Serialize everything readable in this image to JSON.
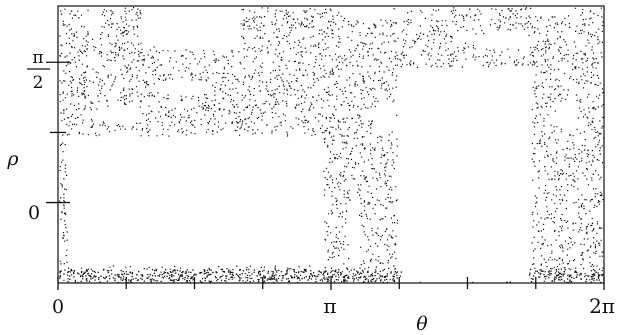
{
  "chart_data": {
    "type": "scatter",
    "title": "",
    "xlabel": "θ",
    "ylabel": "ρ",
    "xlim": [
      0,
      6.2832
    ],
    "ylim": [
      -0.9,
      2.2
    ],
    "grid": false,
    "legend": "none",
    "x_ticks": [
      {
        "value": 0,
        "label": "0"
      },
      {
        "value": 3.1416,
        "label": "π"
      },
      {
        "value": 6.2832,
        "label": "2π"
      }
    ],
    "x_minor_ticks": [
      0.785,
      1.571,
      2.356,
      3.927,
      4.712,
      5.498
    ],
    "y_ticks": [
      {
        "value": 0,
        "label": "0"
      },
      {
        "value": 1.5708,
        "label": "π/2",
        "num": "π",
        "den": "2"
      }
    ],
    "y_minor_ticks": [
      0.785
    ],
    "point_color": "#111111",
    "point_density_note_visible": false,
    "regions_without_points": [
      {
        "shape": "rect",
        "x": [
          0.1,
          3.05
        ],
        "y": [
          -0.7,
          0.75
        ]
      },
      {
        "shape": "rect",
        "x": [
          3.9,
          5.45
        ],
        "y": [
          -0.88,
          1.52
        ]
      },
      {
        "shape": "rect",
        "x": [
          0.95,
          2.1
        ],
        "y": [
          1.75,
          2.2
        ]
      },
      {
        "shape": "ellipse",
        "cx": 1.45,
        "cy": 1.29,
        "rx": 0.32,
        "ry": 0.09
      },
      {
        "shape": "ellipse",
        "cx": 1.85,
        "cy": 1.88,
        "rx": 0.22,
        "ry": 0.18
      },
      {
        "shape": "ellipse",
        "cx": 0.7,
        "cy": 0.97,
        "rx": 0.25,
        "ry": 0.09
      },
      {
        "shape": "ellipse",
        "cx": 0.4,
        "cy": 2.05,
        "rx": 0.12,
        "ry": 0.12
      },
      {
        "shape": "ellipse",
        "cx": 3.75,
        "cy": 0.95,
        "rx": 0.13,
        "ry": 0.2
      },
      {
        "shape": "ellipse",
        "cx": 3.4,
        "cy": -0.33,
        "rx": 0.07,
        "ry": 0.45
      },
      {
        "shape": "ellipse",
        "cx": 5.85,
        "cy": 0.98,
        "rx": 0.12,
        "ry": 0.18
      },
      {
        "shape": "ellipse",
        "cx": 5.9,
        "cy": -0.12,
        "rx": 0.06,
        "ry": 0.07
      },
      {
        "shape": "ellipse",
        "cx": 5.1,
        "cy": 1.82,
        "rx": 0.4,
        "ry": 0.09
      },
      {
        "shape": "ellipse",
        "cx": 3.55,
        "cy": 2.15,
        "rx": 0.3,
        "ry": 0.07
      },
      {
        "shape": "ellipse",
        "cx": 5.7,
        "cy": 2.15,
        "rx": 0.25,
        "ry": 0.06
      }
    ]
  }
}
